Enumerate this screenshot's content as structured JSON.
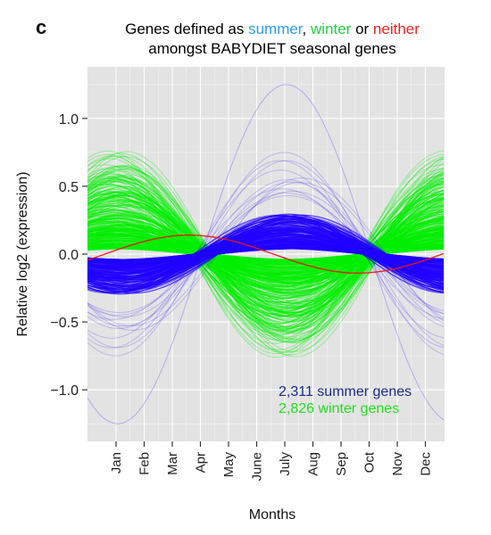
{
  "panel_label": "c",
  "title": {
    "line1_prefix": "Genes defined as ",
    "summer_word": "summer",
    "sep1": ", ",
    "winter_word": "winter",
    "sep2": " or ",
    "neither_word": "neither",
    "line2": "amongst BABYDIET seasonal genes"
  },
  "colors": {
    "summer": "#1f00ff",
    "winter": "#00ee00",
    "neither": "#ee1111",
    "summer_text": "#1a2a8c",
    "winter_text": "#22dd22",
    "title_summer": "#2a9df4",
    "title_winter": "#22cc44",
    "title_neither": "#ee2222",
    "panel_bg": "#e3e3e3",
    "grid": "#ffffff"
  },
  "annotations": {
    "summer_count": "2,311 summer genes",
    "winter_count": "2,826 winter genes"
  },
  "chart_data": {
    "type": "line",
    "title": "Genes defined as summer, winter or neither amongst BABYDIET seasonal genes",
    "xlabel": "Months",
    "ylabel": "Relative log2 (expression)",
    "categories": [
      "Jan",
      "Feb",
      "Mar",
      "Apr",
      "May",
      "June",
      "July",
      "Aug",
      "Sep",
      "Oct",
      "Nov",
      "Dec"
    ],
    "ylim": [
      -1.38,
      1.38
    ],
    "yticks": [
      1.0,
      0.5,
      0.0,
      -0.5,
      -1.0
    ],
    "ytick_labels": [
      "1.0",
      "0.5",
      "0.0",
      "−0.5",
      "−1.0"
    ],
    "grid": true,
    "legend": "text annotations, bottom-right",
    "series": [
      {
        "name": "summer",
        "count": 2311,
        "model": "amplitude * sin(2*pi*(month-1)/12 - phase)",
        "phase_month_of_peak": "July",
        "value_range_at_Jan": [
          -0.05,
          -0.3
        ],
        "value_range_at_July": [
          0.05,
          0.3
        ],
        "max_amplitude_outlier": 1.25
      },
      {
        "name": "winter",
        "count": 2826,
        "model": "amplitude * sin(2*pi*(month-1)/12 - phase)",
        "phase_month_of_peak": "Jan",
        "value_range_at_Jan": [
          0.05,
          0.75
        ],
        "value_range_at_July": [
          -0.05,
          -0.7
        ]
      },
      {
        "name": "neither",
        "x": [
          "Jan",
          "Mar",
          "Jun",
          "Sep",
          "Dec"
        ],
        "y": [
          0.07,
          0.13,
          0.0,
          -0.14,
          0.04
        ]
      }
    ]
  }
}
